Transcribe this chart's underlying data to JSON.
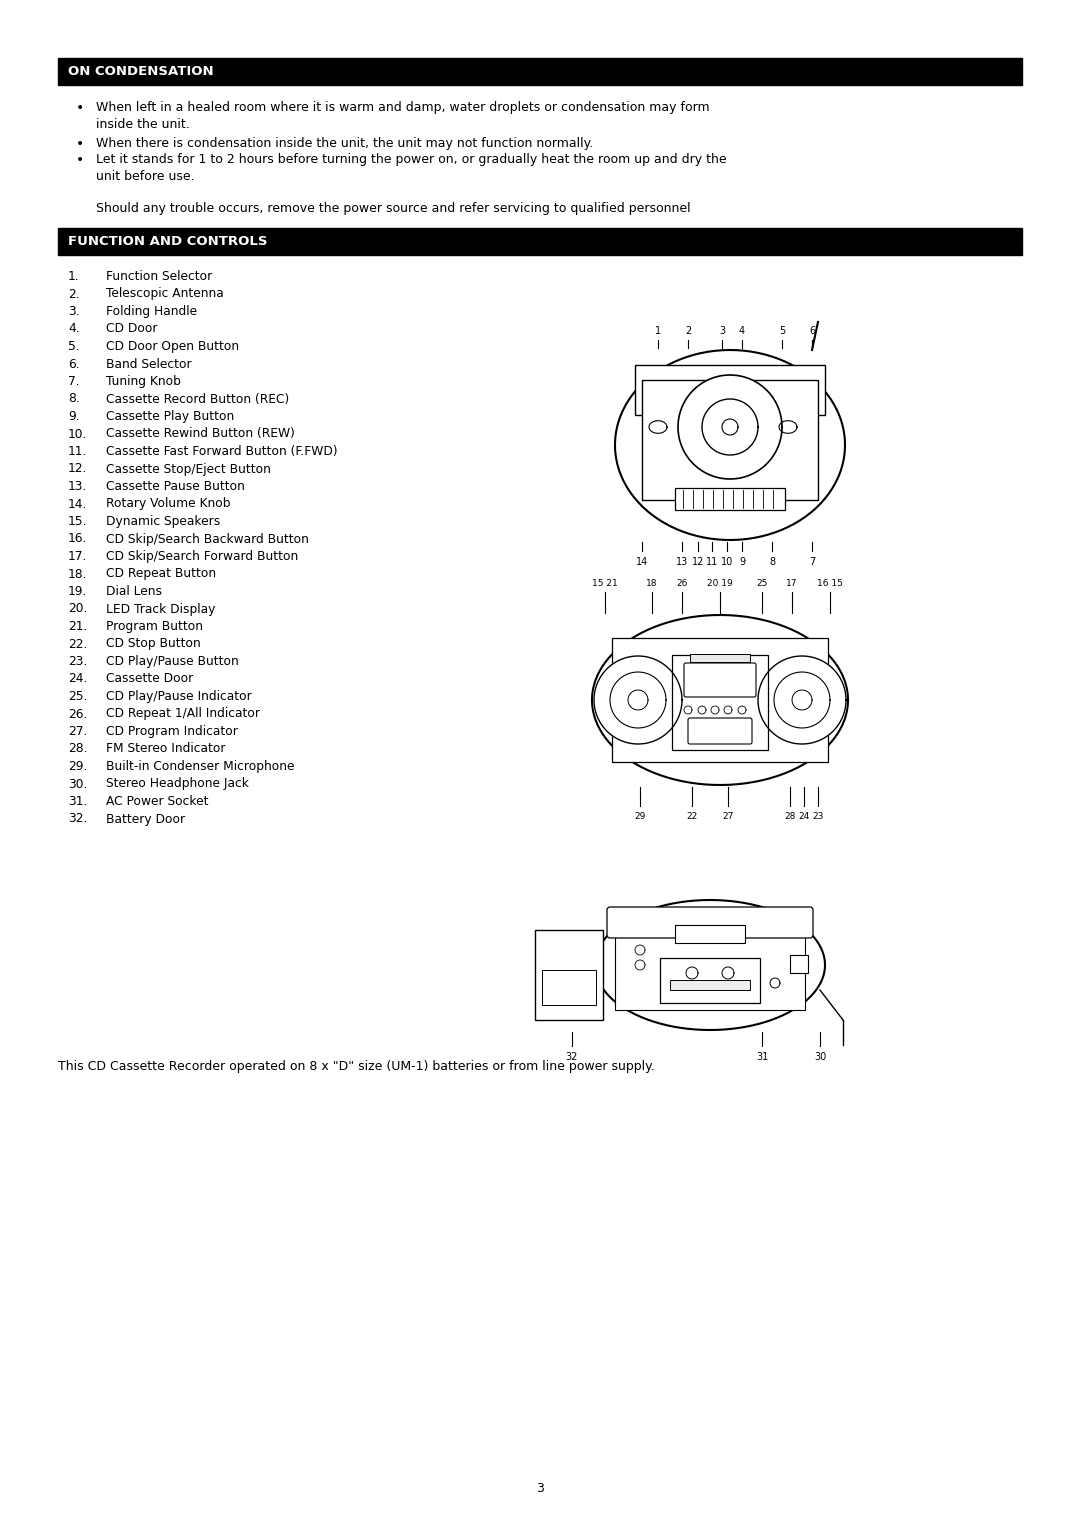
{
  "page_bg": "#ffffff",
  "header_bg": "#000000",
  "header_text_color": "#ffffff",
  "section1_header": "ON CONDENSATION",
  "bullet_points_line1a": "When left in a healed room where it is warm and damp, water droplets or condensation may form",
  "bullet_points_line1b": "inside the unit.",
  "bullet_points_line2": "When there is condensation inside the unit, the unit may not function normally.",
  "bullet_points_line3a": "Let it stands for 1 to 2 hours before turning the power on, or gradually heat the room up and dry the",
  "bullet_points_line3b": "unit before use.",
  "note_text": "Should any trouble occurs, remove the power source and refer servicing to qualified personnel",
  "section2_header": "FUNCTION AND CONTROLS",
  "controls_list": [
    [
      "1.",
      "Function Selector"
    ],
    [
      "2.",
      "Telescopic Antenna"
    ],
    [
      "3.",
      "Folding Handle"
    ],
    [
      "4.",
      "CD Door"
    ],
    [
      "5.",
      "CD Door Open Button"
    ],
    [
      "6.",
      "Band Selector"
    ],
    [
      "7.",
      "Tuning Knob"
    ],
    [
      "8.",
      "Cassette Record Button (REC)"
    ],
    [
      "9.",
      "Cassette Play Button"
    ],
    [
      "10.",
      "Cassette Rewind Button (REW)"
    ],
    [
      "11.",
      "Cassette Fast Forward Button (F.FWD)"
    ],
    [
      "12.",
      "Cassette Stop/Eject Button"
    ],
    [
      "13.",
      "Cassette Pause Button"
    ],
    [
      "14.",
      "Rotary Volume Knob"
    ],
    [
      "15.",
      "Dynamic Speakers"
    ],
    [
      "16.",
      "CD Skip/Search Backward Button"
    ],
    [
      "17.",
      "CD Skip/Search Forward Button"
    ],
    [
      "18.",
      "CD Repeat Button"
    ],
    [
      "19.",
      "Dial Lens"
    ],
    [
      "20.",
      "LED Track Display"
    ],
    [
      "21.",
      "Program Button"
    ],
    [
      "22.",
      "CD Stop Button"
    ],
    [
      "23.",
      "CD Play/Pause Button"
    ],
    [
      "24.",
      "Cassette Door"
    ],
    [
      "25.",
      "CD Play/Pause Indicator"
    ],
    [
      "26.",
      "CD Repeat 1/All Indicator"
    ],
    [
      "27.",
      "CD Program Indicator"
    ],
    [
      "28.",
      "FM Stereo Indicator"
    ],
    [
      "29.",
      "Built-in Condenser Microphone"
    ],
    [
      "30.",
      "Stereo Headphone Jack"
    ],
    [
      "31.",
      "AC Power Socket"
    ],
    [
      "32.",
      "Battery Door"
    ]
  ],
  "footer_text": "This CD Cassette Recorder operated on 8 x \"D\" size (UM-1) batteries or from line power supply.",
  "page_number": "3"
}
